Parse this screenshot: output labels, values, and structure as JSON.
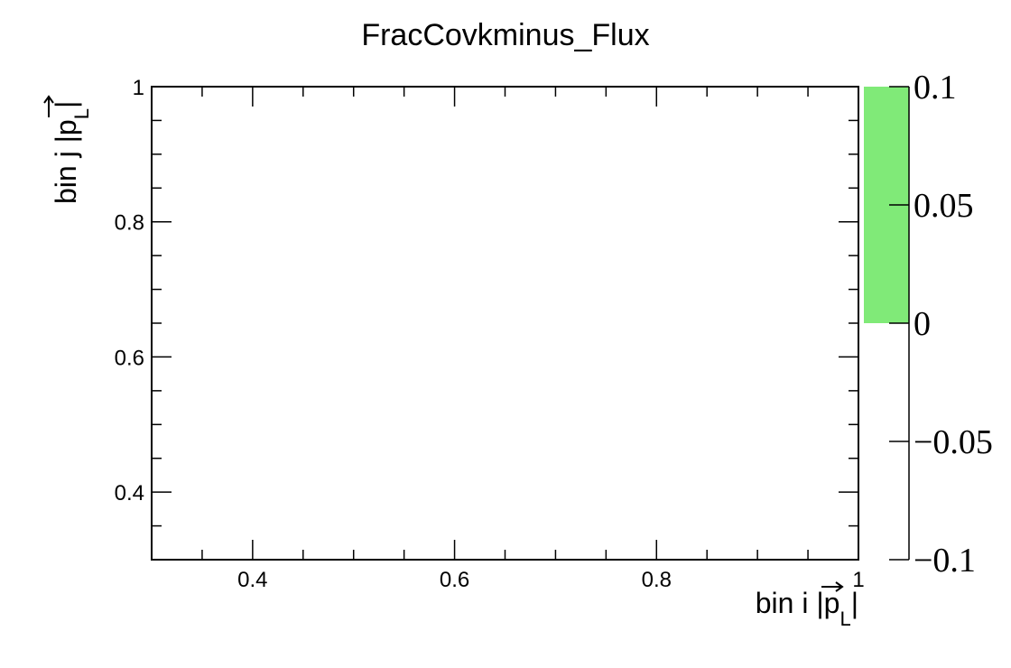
{
  "chart_data": {
    "type": "heatmap",
    "title": "FracCovkminus_Flux",
    "xlabel": {
      "prefix": "bin i |",
      "symbol": "p",
      "subscript": "L",
      "suffix": "|"
    },
    "ylabel": {
      "prefix": "bin j |",
      "symbol": "p",
      "subscript": "L",
      "suffix": "|"
    },
    "xlim": [
      0.3,
      1.0
    ],
    "ylim": [
      0.3,
      1.0
    ],
    "x_ticks": [
      {
        "value": 0.4,
        "label": "0.4"
      },
      {
        "value": 0.6,
        "label": "0.6"
      },
      {
        "value": 0.8,
        "label": "0.8"
      },
      {
        "value": 1.0,
        "label": "1"
      }
    ],
    "y_ticks": [
      {
        "value": 0.4,
        "label": "0.4"
      },
      {
        "value": 0.6,
        "label": "0.6"
      },
      {
        "value": 0.8,
        "label": "0.8"
      },
      {
        "value": 1.0,
        "label": "1"
      }
    ],
    "colorbar": {
      "range": [
        -0.1,
        0.1
      ],
      "filled_range": [
        0.0,
        0.1
      ],
      "fill_color": "#80ea78",
      "ticks": [
        {
          "value": 0.1,
          "label": "0.1"
        },
        {
          "value": 0.05,
          "label": "0.05"
        },
        {
          "value": 0.0,
          "label": "0"
        },
        {
          "value": -0.05,
          "label": "−0.05"
        },
        {
          "value": -0.1,
          "label": "−0.1"
        }
      ]
    },
    "grid": false,
    "cells": []
  }
}
